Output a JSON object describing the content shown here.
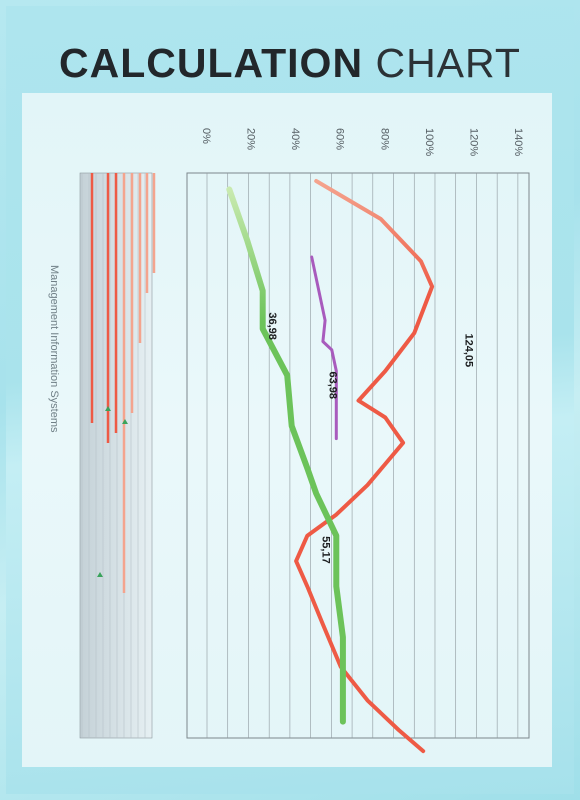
{
  "title": {
    "bold": "CALCULATION",
    "thin": "CHART"
  },
  "side_label": "Management Information Systems",
  "colors": {
    "red": "#ee5a45",
    "salmon": "#f4a48e",
    "green": "#6cc35a",
    "light_green": "#c9eab0",
    "purple": "#a85bbd",
    "marker_green": "#3aa35c"
  },
  "chart_data": {
    "type": "line",
    "orientation": "rotated-90",
    "xlim": [
      0,
      140
    ],
    "x_ticks": [
      "0%",
      "20%",
      "40%",
      "60%",
      "80%",
      "100%",
      "120%",
      "140%"
    ],
    "grid": true,
    "series": [
      {
        "color": "red",
        "points": [
          [
            49,
            0
          ],
          [
            78,
            9
          ],
          [
            96,
            19
          ],
          [
            101,
            25
          ],
          [
            93,
            36
          ],
          [
            80,
            45
          ],
          [
            68,
            52
          ],
          [
            80,
            56
          ],
          [
            88,
            62
          ],
          [
            72,
            72
          ],
          [
            58,
            79
          ],
          [
            45,
            84
          ],
          [
            40,
            90
          ],
          [
            45,
            96
          ],
          [
            52,
            105
          ],
          [
            60,
            115
          ],
          [
            72,
            123
          ],
          [
            86,
            130
          ],
          [
            97,
            135
          ]
        ]
      },
      {
        "color": "green",
        "points": [
          [
            10,
            2
          ],
          [
            18,
            14
          ],
          [
            25,
            26
          ],
          [
            25,
            35
          ],
          [
            36,
            46
          ],
          [
            38,
            58
          ],
          [
            45,
            68
          ],
          [
            49,
            74
          ],
          [
            58,
            84
          ],
          [
            58,
            96
          ],
          [
            61,
            108
          ],
          [
            61,
            128
          ]
        ],
        "labels": [
          {
            "text": "36,98",
            "x": 36,
            "y": 33
          },
          {
            "text": "55,17",
            "x": 60,
            "y": 86
          }
        ]
      },
      {
        "color": "purple",
        "points": [
          [
            47,
            18
          ],
          [
            53,
            33
          ],
          [
            52,
            38
          ],
          [
            56,
            40
          ],
          [
            58,
            45
          ],
          [
            58,
            61
          ]
        ],
        "labels": [
          {
            "text": "63,98",
            "x": 63,
            "y": 47
          },
          {
            "text": "124,05",
            "x": 124,
            "y": 38
          }
        ]
      }
    ]
  }
}
